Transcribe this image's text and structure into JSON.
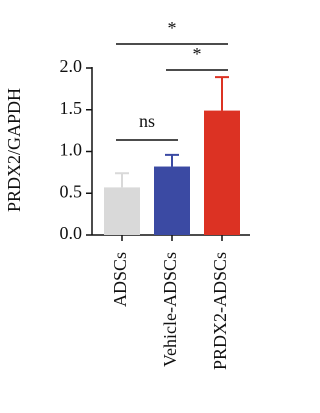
{
  "chart_data": {
    "type": "bar",
    "y_label": "PRDX2/GAPDH",
    "categories": [
      "ADSCs",
      "Vehicle-ADSCs",
      "PRDX2-ADSCs"
    ],
    "values": [
      0.57,
      0.82,
      1.49
    ],
    "errors": [
      0.17,
      0.14,
      0.4
    ],
    "colors": [
      "#d9d9d9",
      "#3b4aa3",
      "#dc3223"
    ],
    "ylim": [
      0,
      2.0
    ],
    "yticks": [
      {
        "value": 0,
        "label": "0.0"
      },
      0.5,
      {
        "value": 1,
        "label": "1.0"
      },
      1.5,
      {
        "value": 2,
        "label": "2.0"
      }
    ],
    "annotations": [
      {
        "label": "ns",
        "between": [
          "ADSCs",
          "Vehicle-ADSCs"
        ]
      },
      {
        "label": "*",
        "between": [
          "Vehicle-ADSCs",
          "PRDX2-ADSCs"
        ]
      },
      {
        "label": "*",
        "between": [
          "ADSCs",
          "PRDX2-ADSCs"
        ]
      }
    ]
  }
}
